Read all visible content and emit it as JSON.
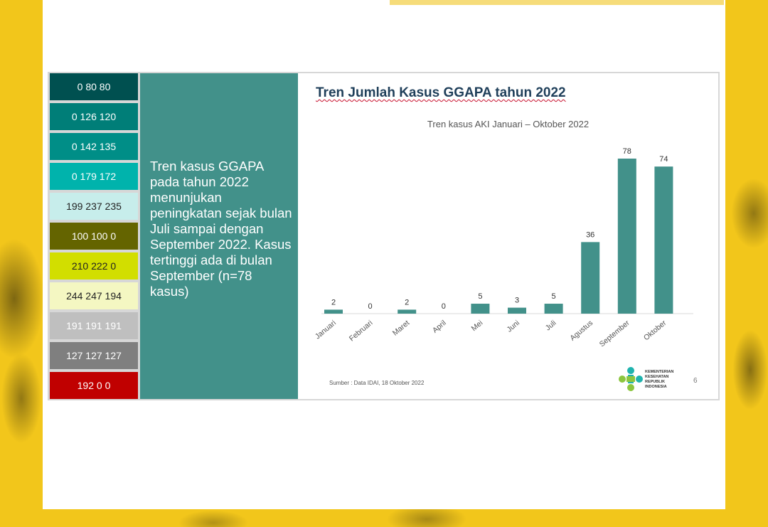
{
  "palette": [
    {
      "label": "0 80 80",
      "bg": "#005050",
      "fg": "#ffffff"
    },
    {
      "label": "0 126 120",
      "bg": "#007e78",
      "fg": "#ffffff"
    },
    {
      "label": "0 142 135",
      "bg": "#008e87",
      "fg": "#ffffff"
    },
    {
      "label": "0 179 172",
      "bg": "#00b3ac",
      "fg": "#ffffff"
    },
    {
      "label": "199 237 235",
      "bg": "#c7edeb",
      "fg": "#222222"
    },
    {
      "label": "100 100 0",
      "bg": "#646400",
      "fg": "#ffffff"
    },
    {
      "label": "210 222 0",
      "bg": "#d2de00",
      "fg": "#222222"
    },
    {
      "label": "244 247 194",
      "bg": "#f4f7c2",
      "fg": "#222222"
    },
    {
      "label": "191 191 191",
      "bg": "#bfbfbf",
      "fg": "#ffffff"
    },
    {
      "label": "127 127 127",
      "bg": "#7f7f7f",
      "fg": "#ffffff"
    },
    {
      "label": "192 0 0",
      "bg": "#c00000",
      "fg": "#ffffff"
    }
  ],
  "summary_text": "Tren kasus GGAPA pada tahun 2022 menunjukan peningkatan sejak bulan Juli sampai dengan September 2022. Kasus tertinggi ada di bulan September (n=78 kasus)",
  "chart_data": {
    "type": "bar",
    "title": "Tren Jumlah Kasus GGAPA tahun 2022",
    "subtitle": "Tren kasus AKI Januari – Oktober 2022",
    "categories": [
      "Januari",
      "Februari",
      "Maret",
      "April",
      "Mei",
      "Juni",
      "Juli",
      "Agustus",
      "September",
      "Oktober"
    ],
    "values": [
      2,
      0,
      2,
      0,
      5,
      3,
      5,
      36,
      78,
      74
    ],
    "bar_color": "#42918a",
    "data_labels": true,
    "grid": false,
    "ylim": [
      0,
      80
    ]
  },
  "source": "Sumber : Data IDAI, 18 Oktober 2022",
  "logo_text": "KEMENTERIAN KESEHATAN REPUBLIK INDONESIA",
  "page_number": "6",
  "colors": {
    "background_yellow": "#f2c61b",
    "teal_panel": "#42918a",
    "title_color": "#1f3f5a"
  }
}
